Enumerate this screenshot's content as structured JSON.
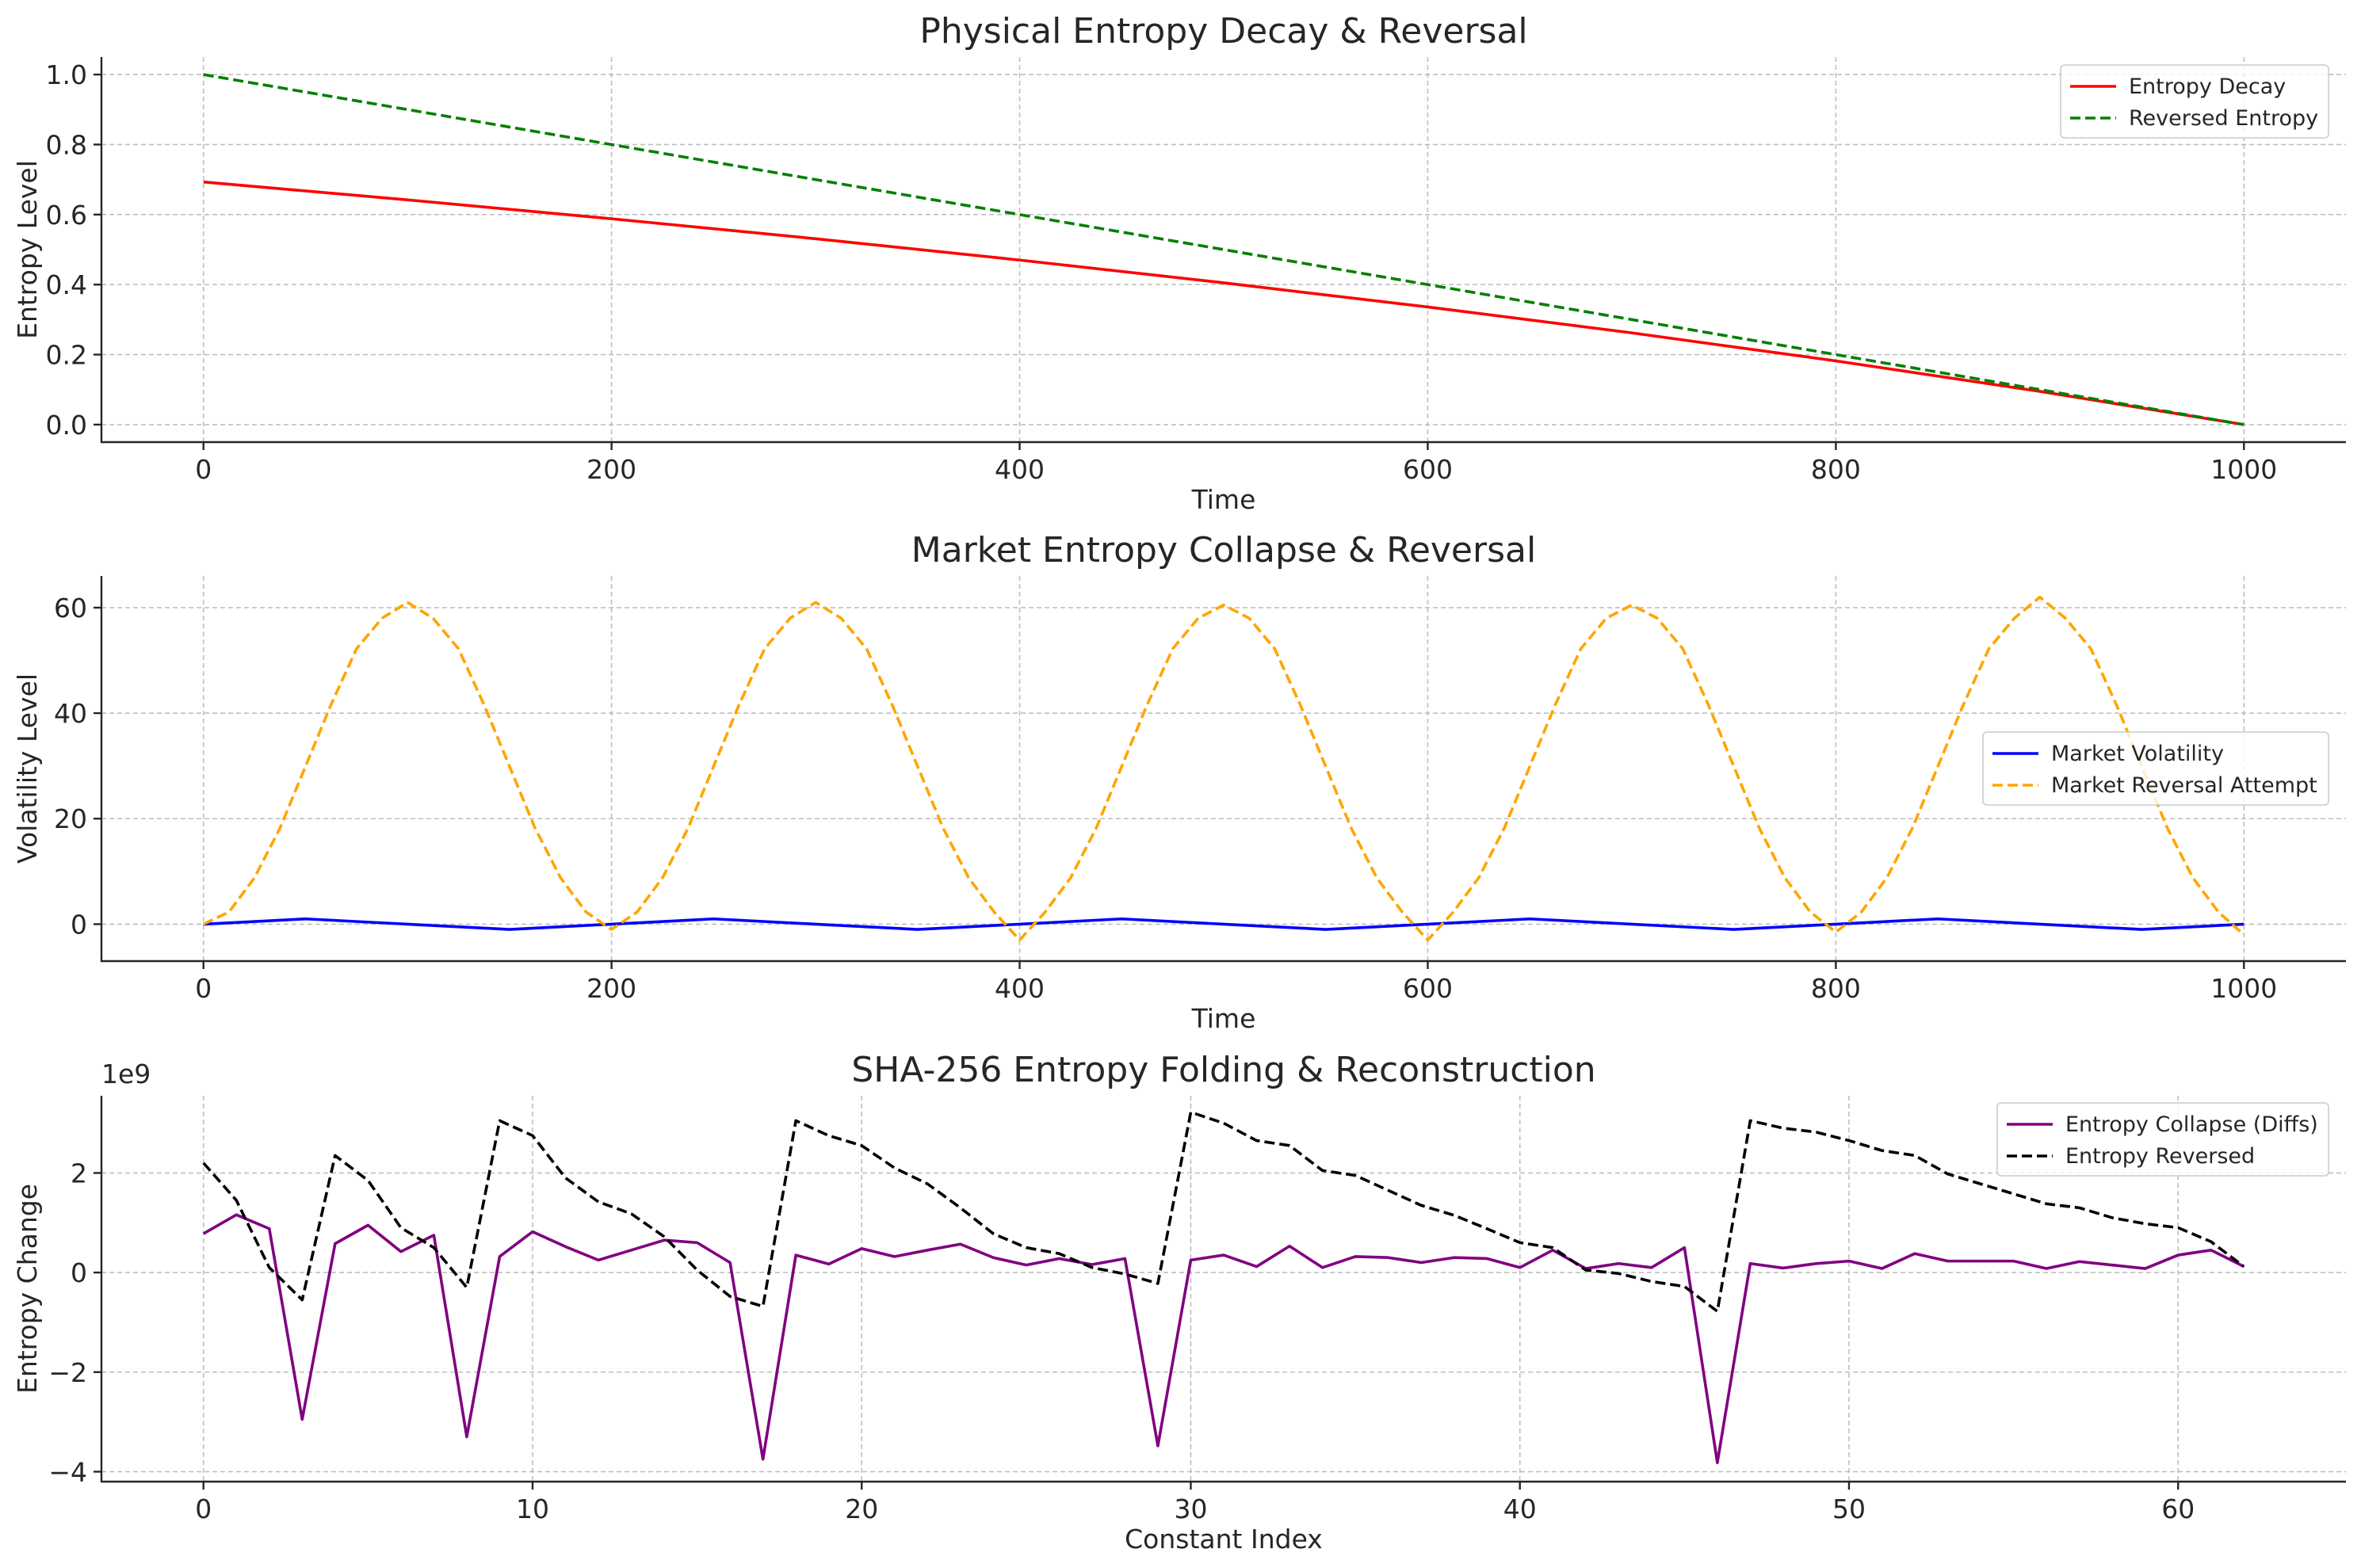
{
  "chart_data": [
    {
      "type": "line",
      "title": "Physical Entropy Decay & Reversal",
      "xlabel": "Time",
      "ylabel": "Entropy Level",
      "xlim": [
        -50,
        1050
      ],
      "ylim": [
        -0.05,
        1.05
      ],
      "xticks": [
        0,
        200,
        400,
        600,
        800,
        1000
      ],
      "yticks": [
        0.0,
        0.2,
        0.4,
        0.6,
        0.8,
        1.0
      ],
      "ytick_labels": [
        "0.0",
        "0.2",
        "0.4",
        "0.6",
        "0.8",
        "1.0"
      ],
      "grid": true,
      "legend_position": "upper right",
      "series": [
        {
          "name": "Entropy Decay",
          "color": "#ff0000",
          "style": "solid",
          "x": [
            0,
            100,
            200,
            300,
            400,
            500,
            600,
            700,
            800,
            900,
            1000
          ],
          "y": [
            0.693,
            0.642,
            0.588,
            0.531,
            0.47,
            0.405,
            0.336,
            0.262,
            0.182,
            0.095,
            0.0
          ]
        },
        {
          "name": "Reversed Entropy",
          "color": "#008000",
          "style": "dashed",
          "x": [
            0,
            1000
          ],
          "y": [
            1.0,
            0.0
          ]
        }
      ]
    },
    {
      "type": "line",
      "title": "Market Entropy Collapse & Reversal",
      "xlabel": "Time",
      "ylabel": "Volatility Level",
      "xlim": [
        -50,
        1050
      ],
      "ylim": [
        -7,
        66
      ],
      "xticks": [
        0,
        200,
        400,
        600,
        800,
        1000
      ],
      "yticks": [
        0,
        20,
        40,
        60
      ],
      "ytick_labels": [
        "0",
        "20",
        "40",
        "60"
      ],
      "grid": true,
      "legend_position": "center right",
      "series": [
        {
          "name": "Market Volatility",
          "color": "#0000ff",
          "style": "solid",
          "x": [
            0,
            50,
            100,
            150,
            200,
            250,
            300,
            350,
            400,
            450,
            500,
            550,
            600,
            650,
            700,
            750,
            800,
            850,
            900,
            950,
            1000
          ],
          "y": [
            0.0,
            1.0,
            0.0,
            -1.0,
            0.0,
            1.0,
            0.0,
            -1.0,
            0.0,
            1.0,
            0.0,
            -1.0,
            0.0,
            1.0,
            0.0,
            -1.0,
            0.0,
            1.0,
            0.0,
            -1.0,
            0.0
          ]
        },
        {
          "name": "Market Reversal Attempt",
          "color": "#ffa500",
          "style": "dashed",
          "x": [
            0,
            12.5,
            25,
            37.5,
            50,
            62.5,
            75,
            87.5,
            100,
            112.5,
            125,
            137.5,
            150,
            162.5,
            175,
            187.5,
            200,
            212.5,
            225,
            237.5,
            250,
            262.5,
            275,
            287.5,
            300,
            312.5,
            325,
            337.5,
            350,
            362.5,
            375,
            387.5,
            400,
            412.5,
            425,
            437.5,
            450,
            462.5,
            475,
            487.5,
            500,
            512.5,
            525,
            537.5,
            550,
            562.5,
            575,
            587.5,
            600,
            612.5,
            625,
            637.5,
            650,
            662.5,
            675,
            687.5,
            700,
            712.5,
            725,
            737.5,
            750,
            762.5,
            775,
            787.5,
            800,
            812.5,
            825,
            837.5,
            850,
            862.5,
            875,
            887.5,
            900,
            912.5,
            925,
            937.5,
            950,
            962.5,
            975,
            987.5,
            1000
          ],
          "y": [
            0.0,
            2.3,
            8.8,
            18.2,
            29.9,
            41.6,
            52.2,
            58.0,
            61.0,
            58.0,
            52.2,
            41.6,
            29.9,
            18.2,
            8.8,
            2.3,
            -1.0,
            2.3,
            8.8,
            18.2,
            29.9,
            41.6,
            52.2,
            58.0,
            61.0,
            58.0,
            52.2,
            41.6,
            29.9,
            18.2,
            8.8,
            2.3,
            -3.0,
            2.3,
            8.8,
            18.2,
            29.9,
            41.6,
            52.2,
            58.0,
            60.5,
            58.0,
            52.2,
            41.6,
            29.9,
            18.2,
            8.8,
            2.3,
            -3.0,
            2.3,
            8.8,
            18.2,
            29.9,
            41.6,
            52.2,
            58.0,
            60.5,
            58.0,
            52.2,
            41.6,
            29.9,
            18.2,
            8.8,
            2.3,
            -1.5,
            2.3,
            8.8,
            18.2,
            29.9,
            41.6,
            52.2,
            58.0,
            62.0,
            58.0,
            52.2,
            41.6,
            29.9,
            18.2,
            8.8,
            2.3,
            -2.0
          ]
        }
      ]
    },
    {
      "type": "line",
      "title": "SHA-256 Entropy Folding & Reconstruction",
      "xlabel": "Constant Index",
      "ylabel": "Entropy Change",
      "offset_label": "1e9",
      "xlim": [
        -3.1,
        65.1
      ],
      "ylim": [
        -4.2,
        3.55
      ],
      "xticks": [
        0,
        10,
        20,
        30,
        40,
        50,
        60
      ],
      "yticks": [
        -4,
        -2,
        0,
        2
      ],
      "ytick_labels": [
        "−4",
        "−2",
        "0",
        "2"
      ],
      "grid": true,
      "legend_position": "upper right",
      "series": [
        {
          "name": "Entropy Collapse (Diffs)",
          "color": "#800080",
          "style": "solid",
          "x": [
            0,
            1,
            2,
            3,
            4,
            5,
            6,
            7,
            8,
            9,
            10,
            11,
            12,
            13,
            14,
            15,
            16,
            17,
            18,
            19,
            20,
            21,
            22,
            23,
            24,
            25,
            26,
            27,
            28,
            29,
            30,
            31,
            32,
            33,
            34,
            35,
            36,
            37,
            38,
            39,
            40,
            41,
            42,
            43,
            44,
            45,
            46,
            47,
            48,
            49,
            50,
            51,
            52,
            53,
            54,
            55,
            56,
            57,
            58,
            59,
            60,
            61,
            62
          ],
          "y": [
            0.78,
            1.16,
            0.88,
            -2.95,
            0.58,
            0.95,
            0.42,
            0.75,
            -3.3,
            0.32,
            0.82,
            0.52,
            0.25,
            0.45,
            0.65,
            0.6,
            0.2,
            -3.75,
            0.35,
            0.17,
            0.48,
            0.32,
            0.45,
            0.57,
            0.3,
            0.15,
            0.28,
            0.16,
            0.28,
            -3.48,
            0.25,
            0.35,
            0.12,
            0.53,
            0.1,
            0.32,
            0.3,
            0.2,
            0.3,
            0.28,
            0.1,
            0.45,
            0.08,
            0.18,
            0.1,
            0.5,
            -3.82,
            0.18,
            0.09,
            0.18,
            0.23,
            0.08,
            0.38,
            0.23,
            0.23,
            0.23,
            0.08,
            0.22,
            0.15,
            0.08,
            0.35,
            0.45,
            0.12
          ]
        },
        {
          "name": "Entropy Reversed",
          "color": "#000000",
          "style": "dashed",
          "x": [
            0,
            1,
            2,
            3,
            4,
            5,
            6,
            7,
            8,
            9,
            10,
            11,
            12,
            13,
            14,
            15,
            16,
            17,
            18,
            19,
            20,
            21,
            22,
            23,
            24,
            25,
            26,
            27,
            28,
            29,
            30,
            31,
            32,
            33,
            34,
            35,
            36,
            37,
            38,
            39,
            40,
            41,
            42,
            43,
            44,
            45,
            46,
            47,
            48,
            49,
            50,
            51,
            52,
            53,
            54,
            55,
            56,
            57,
            58,
            59,
            60,
            61,
            62
          ],
          "y": [
            2.2,
            1.45,
            0.1,
            -0.55,
            2.35,
            1.85,
            0.9,
            0.5,
            -0.3,
            3.05,
            2.75,
            1.9,
            1.42,
            1.18,
            0.72,
            0.05,
            -0.48,
            -0.68,
            3.05,
            2.75,
            2.55,
            2.1,
            1.78,
            1.3,
            0.78,
            0.5,
            0.38,
            0.1,
            -0.03,
            -0.22,
            3.22,
            3.0,
            2.65,
            2.55,
            2.05,
            1.95,
            1.65,
            1.35,
            1.15,
            0.88,
            0.6,
            0.5,
            0.05,
            -0.02,
            -0.18,
            -0.28,
            -0.78,
            3.05,
            2.9,
            2.82,
            2.65,
            2.45,
            2.35,
            1.98,
            1.78,
            1.58,
            1.38,
            1.3,
            1.1,
            0.98,
            0.9,
            0.62,
            0.12
          ]
        }
      ]
    }
  ]
}
